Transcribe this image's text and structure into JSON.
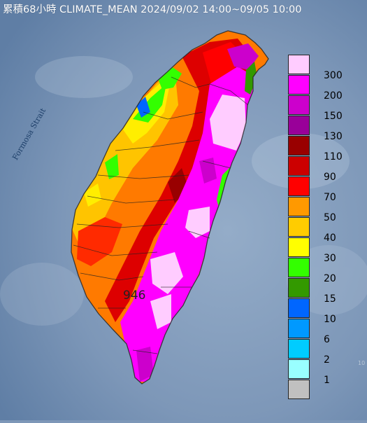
{
  "title": "累積68小時 CLIMATE_MEAN 2024/09/02 14:00~09/05 10:00",
  "strait_label": "Formosa Strait",
  "max_value_label": "946",
  "side_label": "10",
  "legend": [
    {
      "label": "300",
      "color": "#ffccff"
    },
    {
      "label": "200",
      "color": "#ff00ff"
    },
    {
      "label": "150",
      "color": "#cc00cc"
    },
    {
      "label": "130",
      "color": "#990099"
    },
    {
      "label": "110",
      "color": "#990000"
    },
    {
      "label": "90",
      "color": "#cc0000"
    },
    {
      "label": "70",
      "color": "#ff0000"
    },
    {
      "label": "50",
      "color": "#ff9900"
    },
    {
      "label": "40",
      "color": "#ffcc00"
    },
    {
      "label": "30",
      "color": "#ffff00"
    },
    {
      "label": "20",
      "color": "#33ff00"
    },
    {
      "label": "15",
      "color": "#339900"
    },
    {
      "label": "10",
      "color": "#0066ff"
    },
    {
      "label": "6",
      "color": "#0099ff"
    },
    {
      "label": "2",
      "color": "#00ccff"
    },
    {
      "label": "1",
      "color": "#99ffff"
    },
    {
      "label": "",
      "color": "#c0c0c0"
    }
  ],
  "colors": {
    "sea": "#7d97b8",
    "land_base": "#ff7a00"
  }
}
